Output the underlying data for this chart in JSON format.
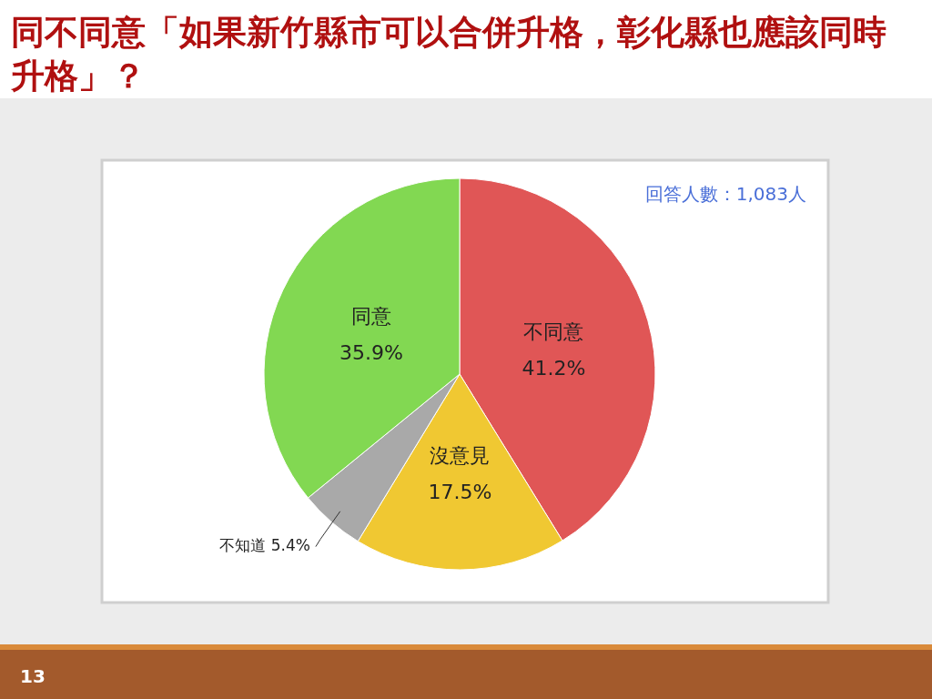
{
  "chart_data": {
    "type": "pie",
    "title": "同不同意「如果新竹縣市可以合併升格，彰化縣也應該同時升格」？",
    "categories": [
      "不同意",
      "沒意見",
      "不知道",
      "同意"
    ],
    "values": [
      41.2,
      17.5,
      5.4,
      35.9
    ],
    "value_labels": [
      "41.2%",
      "17.5%",
      "5.4%",
      "35.9%"
    ],
    "colors": [
      "#e05656",
      "#f0c832",
      "#a9a9a9",
      "#82d852"
    ],
    "annotations": [
      "回答人數：1,083人",
      "13"
    ],
    "legend": false
  }
}
